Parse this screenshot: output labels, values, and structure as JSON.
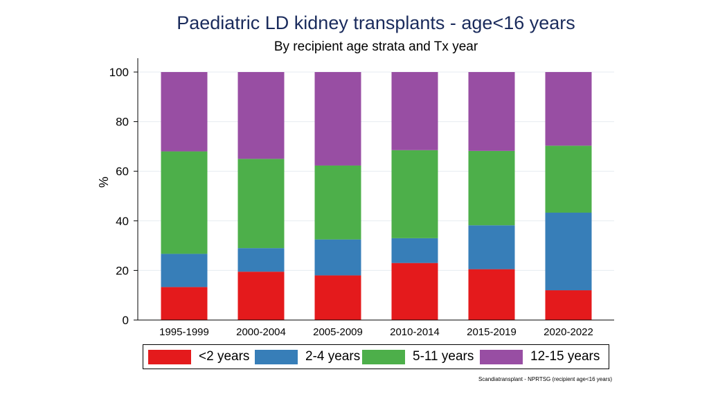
{
  "chart_data": {
    "type": "bar",
    "stacked": true,
    "title": "Paediatric LD kidney transplants - age<16 years",
    "subtitle": "By recipient age strata and Tx year",
    "xlabel": "",
    "ylabel": "%",
    "ylim": [
      0,
      100
    ],
    "yticks": [
      "0",
      "20",
      "40",
      "60",
      "80",
      "100"
    ],
    "categories": [
      "1995-1999",
      "2000-2004",
      "2005-2009",
      "2010-2014",
      "2015-2019",
      "2020-2022"
    ],
    "series": [
      {
        "name": "<2 years",
        "color": "#e41a1c",
        "values": [
          13.3,
          19.5,
          18,
          23,
          20.5,
          12
        ]
      },
      {
        "name": "2-4 years",
        "color": "#377eb8",
        "values": [
          13.4,
          9.5,
          14.5,
          10,
          17.7,
          31.3
        ]
      },
      {
        "name": "5-11 years",
        "color": "#4daf4a",
        "values": [
          41.3,
          36,
          29.8,
          35.5,
          30,
          27
        ]
      },
      {
        "name": "12-15 years",
        "color": "#984ea3",
        "values": [
          32,
          35,
          37.7,
          31.5,
          31.8,
          29.7
        ]
      }
    ],
    "legend_position": "bottom",
    "source": "Scandiatransplant - NPRTSG (recipient age<16 years)"
  }
}
